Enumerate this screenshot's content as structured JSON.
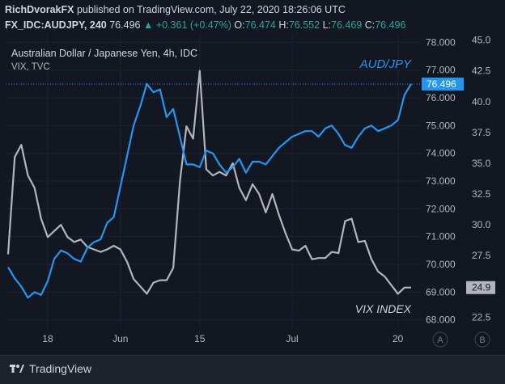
{
  "publisher_line": {
    "user": "RichDvorakFX",
    "rest": "published on TradingView.com, July 22, 2020 18:26:06 UTC"
  },
  "symbol_line": {
    "symbol": "FX_IDC:AUDJPY, 240",
    "last": "76.496",
    "arrow": "▲",
    "change": "+0.361 (+0.47%)",
    "o_label": "O:",
    "o": "76.474",
    "h_label": "H:",
    "h": "76.552",
    "l_label": "L:",
    "l": "76.469",
    "c_label": "C:",
    "c": "76.496"
  },
  "footer": {
    "logo_text": "TradingView"
  },
  "colors": {
    "background": "#131722",
    "audjpy": "#2196f3",
    "vix": "#b2b5be",
    "change_up": "#26a69a",
    "axis_text": "#b2b5be"
  },
  "chart_data": {
    "type": "line",
    "title": "Australian Dollar / Japanese Yen, 4h, IDC",
    "subtitle": "VIX, TVC",
    "x_tick_labels": [
      "18",
      "Jun",
      "15",
      "Jul",
      "20"
    ],
    "left_scale_badge": "A",
    "right_scale_badge": "B",
    "series": [
      {
        "name": "AUD/JPY",
        "axis": "left",
        "ylim": [
          67.7,
          78.3
        ],
        "yticks": [
          "78.000",
          "77.000",
          "76.000",
          "75.000",
          "74.000",
          "73.000",
          "72.000",
          "71.000",
          "70.000",
          "69.000",
          "68.000"
        ],
        "last_value": "76.496",
        "x": [
          "May 11",
          "May 12",
          "May 13",
          "May 14",
          "May 15",
          "May 16",
          "May 18",
          "May 19",
          "May 20",
          "May 21",
          "May 22",
          "May 24",
          "May 25",
          "May 26",
          "May 27",
          "May 28",
          "May 29",
          "Jun 1",
          "Jun 2",
          "Jun 3",
          "Jun 4",
          "Jun 5",
          "Jun 6",
          "Jun 8",
          "Jun 9",
          "Jun 10",
          "Jun 11",
          "Jun 12",
          "Jun 13",
          "Jun 15",
          "Jun 16",
          "Jun 17",
          "Jun 18",
          "Jun 19",
          "Jun 20",
          "Jun 22",
          "Jun 23",
          "Jun 24",
          "Jun 25",
          "Jun 26",
          "Jun 27",
          "Jun 29",
          "Jun 30",
          "Jul 1",
          "Jul 2",
          "Jul 3",
          "Jul 5",
          "Jul 6",
          "Jul 7",
          "Jul 8",
          "Jul 9",
          "Jul 10",
          "Jul 12",
          "Jul 13",
          "Jul 14",
          "Jul 15",
          "Jul 16",
          "Jul 17",
          "Jul 19",
          "Jul 20",
          "Jul 21",
          "Jul 22"
        ],
        "values": [
          69.9,
          69.5,
          69.2,
          68.8,
          69.0,
          68.9,
          69.4,
          70.2,
          70.5,
          70.4,
          70.2,
          70.1,
          70.6,
          70.8,
          70.9,
          71.5,
          71.7,
          72.8,
          73.9,
          75.0,
          75.7,
          76.5,
          76.2,
          76.3,
          75.3,
          75.6,
          74.6,
          73.6,
          73.6,
          73.5,
          74.1,
          74.0,
          73.6,
          73.3,
          73.5,
          73.8,
          73.3,
          73.7,
          73.7,
          73.6,
          73.9,
          74.2,
          74.4,
          74.6,
          74.7,
          74.8,
          74.8,
          74.6,
          74.9,
          75.0,
          74.7,
          74.3,
          74.2,
          74.6,
          74.9,
          75.0,
          74.8,
          74.9,
          75.0,
          75.2,
          76.1,
          76.5
        ]
      },
      {
        "name": "VIX INDEX",
        "axis": "right",
        "ylim": [
          21.6,
          45.5
        ],
        "yticks": [
          "45.0",
          "42.5",
          "40.0",
          "37.5",
          "35.0",
          "32.5",
          "30.0",
          "27.5",
          "25.0",
          "22.5"
        ],
        "last_value": "24.9",
        "x": [
          "May 11",
          "May 12",
          "May 13",
          "May 14",
          "May 15",
          "May 16",
          "May 18",
          "May 19",
          "May 20",
          "May 21",
          "May 22",
          "May 24",
          "May 25",
          "May 26",
          "May 27",
          "May 28",
          "May 29",
          "Jun 1",
          "Jun 2",
          "Jun 3",
          "Jun 4",
          "Jun 5",
          "Jun 6",
          "Jun 8",
          "Jun 9",
          "Jun 10",
          "Jun 11",
          "Jun 12",
          "Jun 13",
          "Jun 15",
          "Jun 16",
          "Jun 17",
          "Jun 18",
          "Jun 19",
          "Jun 20",
          "Jun 22",
          "Jun 23",
          "Jun 24",
          "Jun 25",
          "Jun 26",
          "Jun 27",
          "Jun 29",
          "Jun 30",
          "Jul 1",
          "Jul 2",
          "Jul 3",
          "Jul 5",
          "Jul 6",
          "Jul 7",
          "Jul 8",
          "Jul 9",
          "Jul 10",
          "Jul 12",
          "Jul 13",
          "Jul 14",
          "Jul 15",
          "Jul 16",
          "Jul 17",
          "Jul 19",
          "Jul 20",
          "Jul 21",
          "Jul 22"
        ],
        "values": [
          27.6,
          35.5,
          36.5,
          34.0,
          33.0,
          30.5,
          29.0,
          29.5,
          30.0,
          29.0,
          28.6,
          28.8,
          28.2,
          28.0,
          27.8,
          28.0,
          28.3,
          28.0,
          27.0,
          25.6,
          25.0,
          24.4,
          25.3,
          25.5,
          25.5,
          26.5,
          33.5,
          38.0,
          37.0,
          42.5,
          34.5,
          34.0,
          34.3,
          34.0,
          35.0,
          33.0,
          32.0,
          33.3,
          32.5,
          31.0,
          32.5,
          30.8,
          29.3,
          28.0,
          27.9,
          28.3,
          27.2,
          27.3,
          27.3,
          27.8,
          27.7,
          30.3,
          30.5,
          28.6,
          28.7,
          27.2,
          26.2,
          25.8,
          25.1,
          24.4,
          24.9,
          24.9
        ]
      }
    ],
    "annotations": [
      "AUD/JPY",
      "VIX INDEX"
    ]
  }
}
